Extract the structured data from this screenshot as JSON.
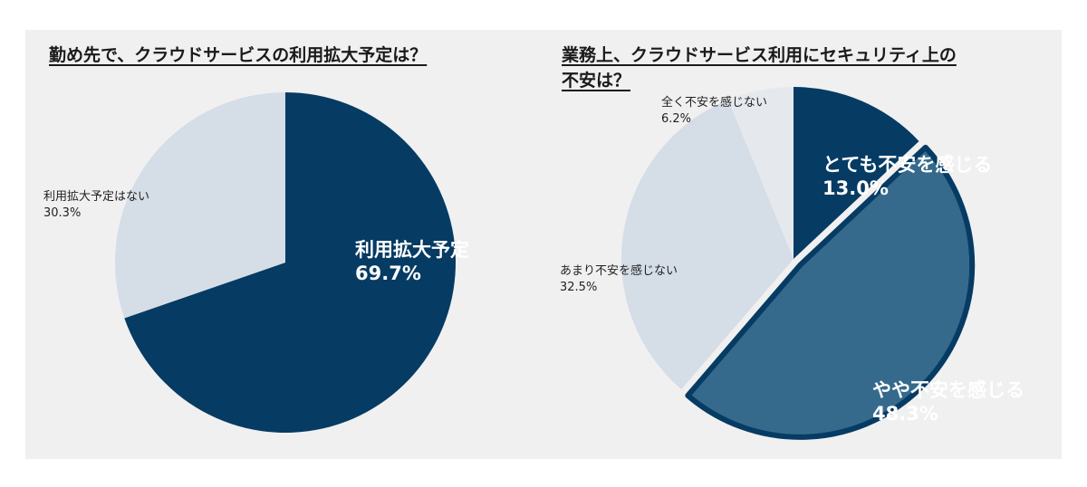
{
  "colors": {
    "panel_bg": "#f0f0f0",
    "dark_navy": "#063b63",
    "mid_blue": "#356a8c",
    "light_slate": "#d5dde7",
    "very_light": "#e5e9ee"
  },
  "chart_data": [
    {
      "type": "pie",
      "title": "勤め先で、クラウドサービスの利用拡大予定は？",
      "slices": [
        {
          "label": "利用拡大予定",
          "value": 69.7,
          "value_text": "69.7%",
          "color": "#063b63",
          "label_style": "large-white"
        },
        {
          "label": "利用拡大予定はない",
          "value": 30.3,
          "value_text": "30.3%",
          "color": "#d5dde7",
          "label_style": "small-dark"
        }
      ]
    },
    {
      "type": "pie",
      "title_lines": [
        "業務上、クラウドサービス利用にセキュリティ上の",
        "不安は？"
      ],
      "slices": [
        {
          "label": "とても不安を感じる",
          "value": 13.0,
          "value_text": "13.0%",
          "color": "#063b63",
          "label_style": "large-white"
        },
        {
          "label": "やや不安を感じる",
          "value": 48.3,
          "value_text": "48.3%",
          "color": "#356a8c",
          "label_style": "large-white",
          "highlighted": true
        },
        {
          "label": "あまり不安を感じない",
          "value": 32.5,
          "value_text": "32.5%",
          "color": "#d5dde7",
          "label_style": "small-dark"
        },
        {
          "label": "全く不安を感じない",
          "value": 6.2,
          "value_text": "6.2%",
          "color": "#e5e9ee",
          "label_style": "small-dark"
        }
      ]
    }
  ]
}
